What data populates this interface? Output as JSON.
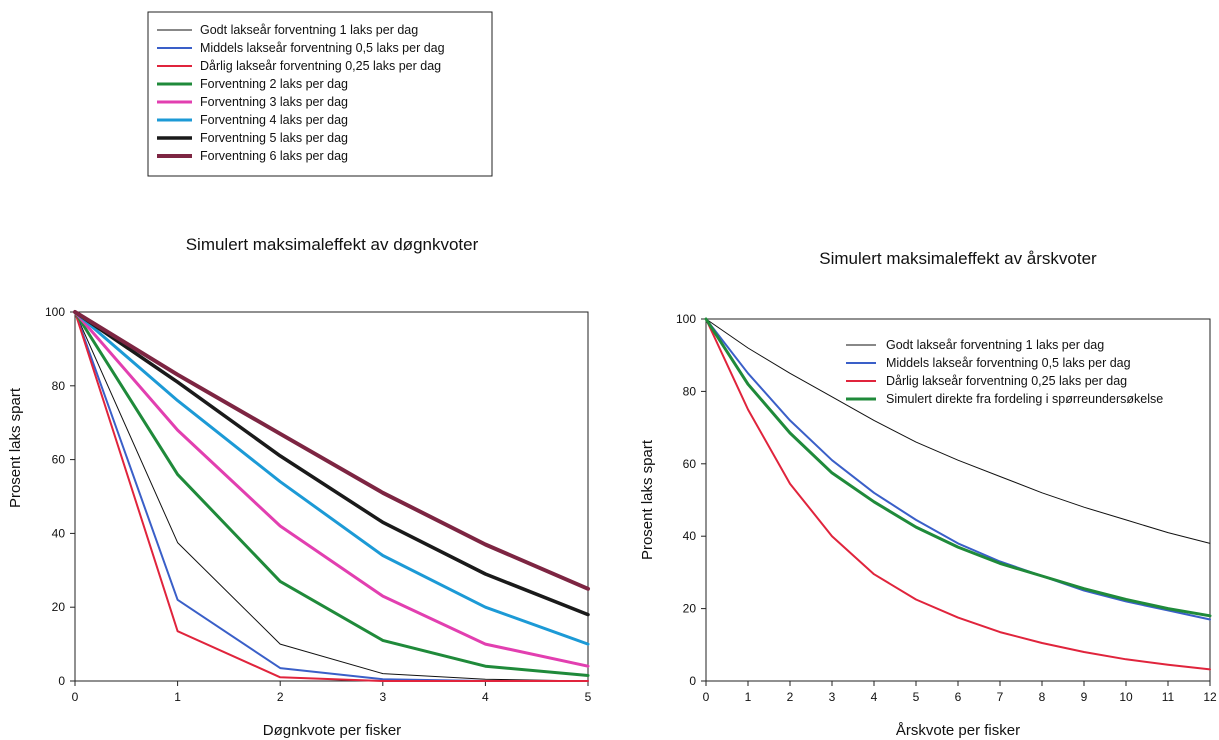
{
  "chart_data": [
    {
      "type": "line",
      "title": "Simulert maksimaleffekt av døgnkvoter",
      "xlabel": "Døgnkvote per fisker",
      "ylabel": "Prosent laks spart",
      "xlim": [
        0,
        5
      ],
      "ylim": [
        0,
        100
      ],
      "x_ticks": [
        0,
        1,
        2,
        3,
        4,
        5
      ],
      "y_ticks": [
        0,
        20,
        40,
        60,
        80,
        100
      ],
      "legend_position": "above",
      "x": [
        0,
        1,
        2,
        3,
        4,
        5
      ],
      "series": [
        {
          "name": "Godt lakseår forventning 1 laks per dag",
          "color": "#111111",
          "width": 1,
          "values": [
            100,
            37.5,
            10,
            2,
            0.5,
            0
          ]
        },
        {
          "name": "Middels lakseår forventning 0,5 laks per dag",
          "color": "#3a5fc8",
          "width": 2,
          "values": [
            100,
            22,
            3.5,
            0.5,
            0,
            0
          ]
        },
        {
          "name": "Dårlig lakseår forventning 0,25 laks per dag",
          "color": "#e0243c",
          "width": 2,
          "values": [
            100,
            13.5,
            1,
            0,
            0,
            0
          ]
        },
        {
          "name": "Forventning 2 laks per dag",
          "color": "#1f8a3a",
          "width": 3,
          "values": [
            100,
            56,
            27,
            11,
            4,
            1.5
          ]
        },
        {
          "name": "Forventning 3 laks per dag",
          "color": "#e23fb0",
          "width": 3,
          "values": [
            100,
            68,
            42,
            23,
            10,
            4
          ]
        },
        {
          "name": "Forventning 4 laks per dag",
          "color": "#1c9ad6",
          "width": 3,
          "values": [
            100,
            76,
            54,
            34,
            20,
            10
          ]
        },
        {
          "name": "Forventning 5 laks per dag",
          "color": "#1a1a1a",
          "width": 3.5,
          "values": [
            100,
            81,
            61,
            43,
            29,
            18
          ]
        },
        {
          "name": "Forventning 6 laks per dag",
          "color": "#7d2542",
          "width": 4,
          "values": [
            100,
            83,
            67,
            51,
            37,
            25
          ]
        }
      ]
    },
    {
      "type": "line",
      "title": "Simulert maksimaleffekt av årskvoter",
      "xlabel": "Årskvote per fisker",
      "ylabel": "Prosent laks spart",
      "xlim": [
        0,
        12
      ],
      "ylim": [
        0,
        100
      ],
      "x_ticks": [
        0,
        1,
        2,
        3,
        4,
        5,
        6,
        7,
        8,
        9,
        10,
        11,
        12
      ],
      "y_ticks": [
        0,
        20,
        40,
        60,
        80,
        100
      ],
      "legend_position": "top-right",
      "x": [
        0,
        1,
        2,
        3,
        4,
        5,
        6,
        7,
        8,
        9,
        10,
        11,
        12
      ],
      "series": [
        {
          "name": "Godt lakseår forventning 1 laks per dag",
          "color": "#111111",
          "width": 1,
          "values": [
            100,
            92,
            85,
            78.5,
            72,
            66,
            61,
            56.5,
            52,
            48,
            44.5,
            41,
            38
          ]
        },
        {
          "name": "Middels lakseår forventning 0,5 laks per dag",
          "color": "#3a5fc8",
          "width": 2,
          "values": [
            100,
            85,
            72,
            61,
            52,
            44.5,
            38,
            33,
            29,
            25,
            22,
            19.5,
            17
          ]
        },
        {
          "name": "Dårlig lakseår forventning 0,25 laks per dag",
          "color": "#e0243c",
          "width": 2,
          "values": [
            100,
            75,
            54.5,
            40,
            29.5,
            22.5,
            17.5,
            13.5,
            10.5,
            8,
            6,
            4.5,
            3.2
          ]
        },
        {
          "name": "Simulert direkte fra fordeling i spørreundersøkelse",
          "color": "#1f8a3a",
          "width": 3,
          "values": [
            100,
            82,
            68.5,
            57.5,
            49.5,
            42.5,
            37,
            32.5,
            29,
            25.5,
            22.5,
            20,
            18
          ]
        }
      ]
    }
  ]
}
